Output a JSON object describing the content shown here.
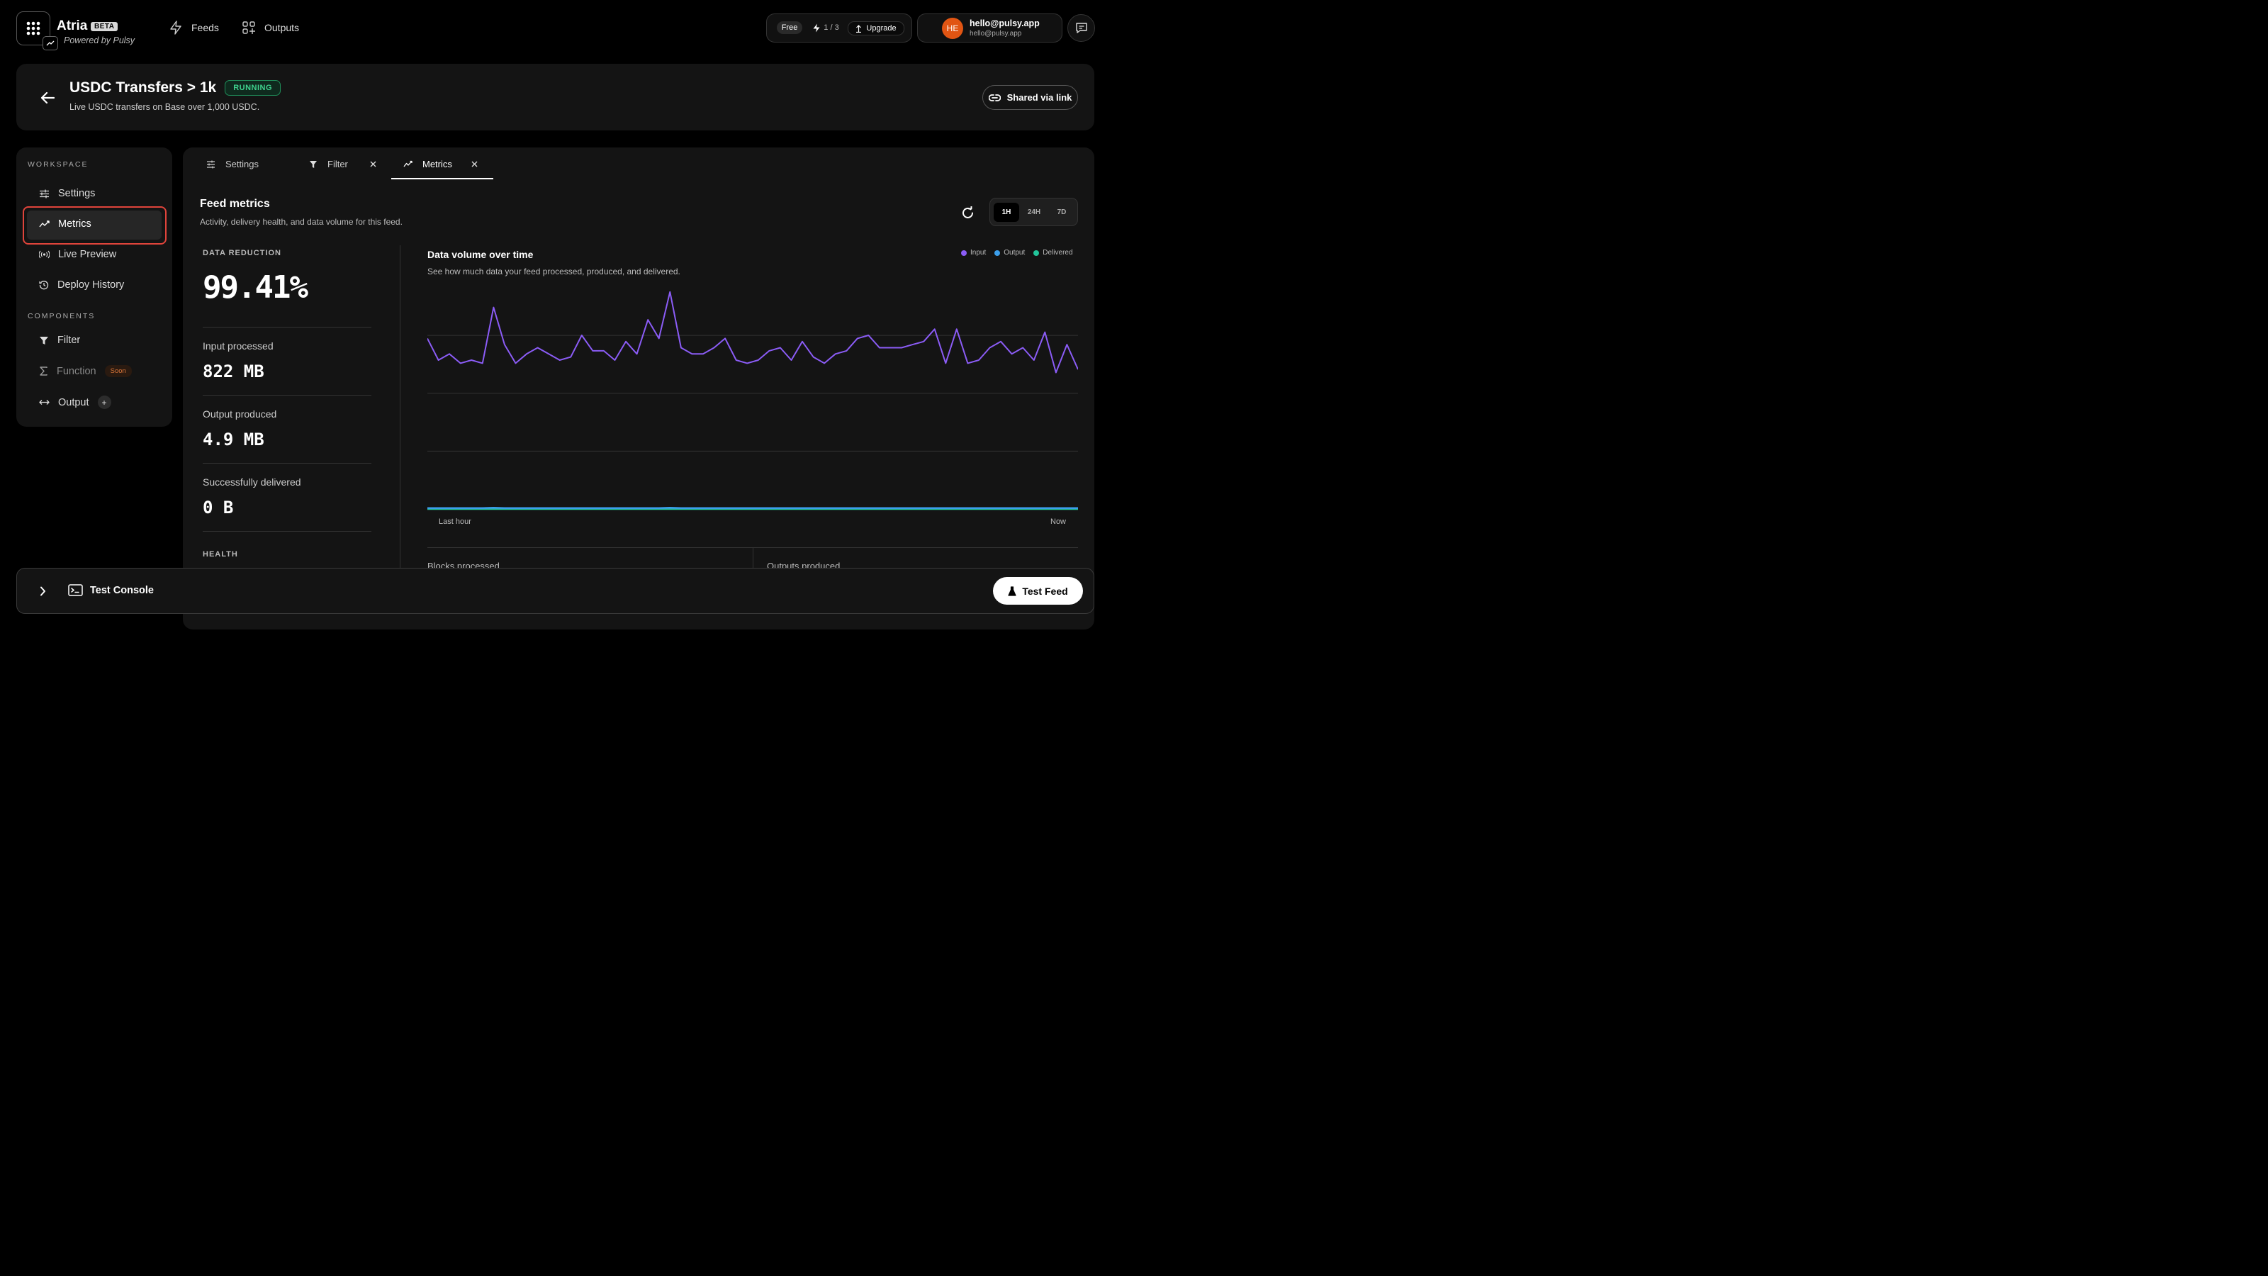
{
  "header": {
    "brand": "Atria",
    "beta": "BETA",
    "powered_by": "Powered by Pulsy",
    "nav": [
      {
        "label": "Feeds",
        "icon": "bolt-icon"
      },
      {
        "label": "Outputs",
        "icon": "outputs-grid-icon"
      }
    ],
    "plan": {
      "tier": "Free",
      "usage": "1 / 3",
      "upgrade": "Upgrade"
    },
    "user": {
      "initials": "HE",
      "name": "hello@pulsy.app",
      "email": "hello@pulsy.app"
    }
  },
  "feed": {
    "title": "USDC Transfers > 1k",
    "status": "RUNNING",
    "description": "Live USDC transfers on Base over 1,000 USDC.",
    "share_label": "Shared via link"
  },
  "sidebar": {
    "workspace_heading": "WORKSPACE",
    "workspace_items": [
      {
        "label": "Settings",
        "icon": "sliders-icon"
      },
      {
        "label": "Metrics",
        "icon": "metrics-icon",
        "selected": true
      },
      {
        "label": "Live Preview",
        "icon": "broadcast-icon"
      },
      {
        "label": "Deploy History",
        "icon": "history-icon"
      }
    ],
    "components_heading": "COMPONENTS",
    "component_items": [
      {
        "label": "Filter",
        "icon": "filter-icon"
      },
      {
        "label": "Function",
        "icon": "sigma-icon",
        "badge": "Soon"
      },
      {
        "label": "Output",
        "icon": "output-arrows-icon",
        "action": "+"
      }
    ]
  },
  "tabs": [
    {
      "label": "Settings",
      "icon": "sliders-icon",
      "closable": false
    },
    {
      "label": "Filter",
      "icon": "filter-icon",
      "closable": true
    },
    {
      "label": "Metrics",
      "icon": "metrics-icon",
      "closable": true,
      "active": true
    }
  ],
  "metrics": {
    "title": "Feed metrics",
    "subtitle": "Activity, delivery health, and data volume for this feed.",
    "ranges": [
      "1H",
      "24H",
      "7D"
    ],
    "active_range": "1H",
    "data_reduction_label": "DATA REDUCTION",
    "data_reduction_value": "99.41%",
    "stats": [
      {
        "label": "Input processed",
        "value": "822 MB"
      },
      {
        "label": "Output produced",
        "value": "4.9 MB"
      },
      {
        "label": "Successfully delivered",
        "value": "0 B"
      }
    ],
    "health_label": "HEALTH",
    "bottom_cards": [
      "Blocks processed",
      "Outputs produced"
    ]
  },
  "chart_data": {
    "type": "line",
    "title": "Data volume over time",
    "subtitle": "See how much data your feed processed, produced, and delivered.",
    "x_start_label": "Last hour",
    "x_end_label": "Now",
    "grid": true,
    "legend_placement": "top-right",
    "series": [
      {
        "name": "Input",
        "color": "#8b5cf6",
        "values": [
          0.55,
          0.48,
          0.5,
          0.47,
          0.48,
          0.47,
          0.65,
          0.53,
          0.47,
          0.5,
          0.52,
          0.5,
          0.48,
          0.49,
          0.56,
          0.51,
          0.51,
          0.48,
          0.54,
          0.5,
          0.61,
          0.55,
          0.7,
          0.52,
          0.5,
          0.5,
          0.52,
          0.55,
          0.48,
          0.47,
          0.48,
          0.51,
          0.52,
          0.48,
          0.54,
          0.49,
          0.47,
          0.5,
          0.51,
          0.55,
          0.56,
          0.52,
          0.52,
          0.52,
          0.53,
          0.54,
          0.58,
          0.47,
          0.58,
          0.47,
          0.48,
          0.52,
          0.54,
          0.5,
          0.52,
          0.48,
          0.57,
          0.44,
          0.53,
          0.45
        ]
      },
      {
        "name": "Output",
        "color": "#3b9eea",
        "values": [
          0.003,
          0.003,
          0.003,
          0.003,
          0.003,
          0.003,
          0.004,
          0.003,
          0.003,
          0.003,
          0.003,
          0.003,
          0.003,
          0.003,
          0.003,
          0.003,
          0.003,
          0.003,
          0.003,
          0.003,
          0.003,
          0.003,
          0.004,
          0.003,
          0.003,
          0.003,
          0.003,
          0.003,
          0.003,
          0.003,
          0.003,
          0.003,
          0.003,
          0.003,
          0.003,
          0.003,
          0.003,
          0.003,
          0.003,
          0.003,
          0.003,
          0.003,
          0.003,
          0.003,
          0.003,
          0.003,
          0.003,
          0.003,
          0.003,
          0.003,
          0.003,
          0.003,
          0.003,
          0.003,
          0.003,
          0.003,
          0.003,
          0.003,
          0.003,
          0.003
        ]
      },
      {
        "name": "Delivered",
        "color": "#22c59a",
        "values": [
          0,
          0,
          0,
          0,
          0,
          0,
          0,
          0,
          0,
          0,
          0,
          0,
          0,
          0,
          0,
          0,
          0,
          0,
          0,
          0,
          0,
          0,
          0,
          0,
          0,
          0,
          0,
          0,
          0,
          0,
          0,
          0,
          0,
          0,
          0,
          0,
          0,
          0,
          0,
          0,
          0,
          0,
          0,
          0,
          0,
          0,
          0,
          0,
          0,
          0,
          0,
          0,
          0,
          0,
          0,
          0,
          0,
          0,
          0,
          0
        ]
      }
    ]
  },
  "console": {
    "label": "Test Console",
    "action": "Test Feed"
  }
}
